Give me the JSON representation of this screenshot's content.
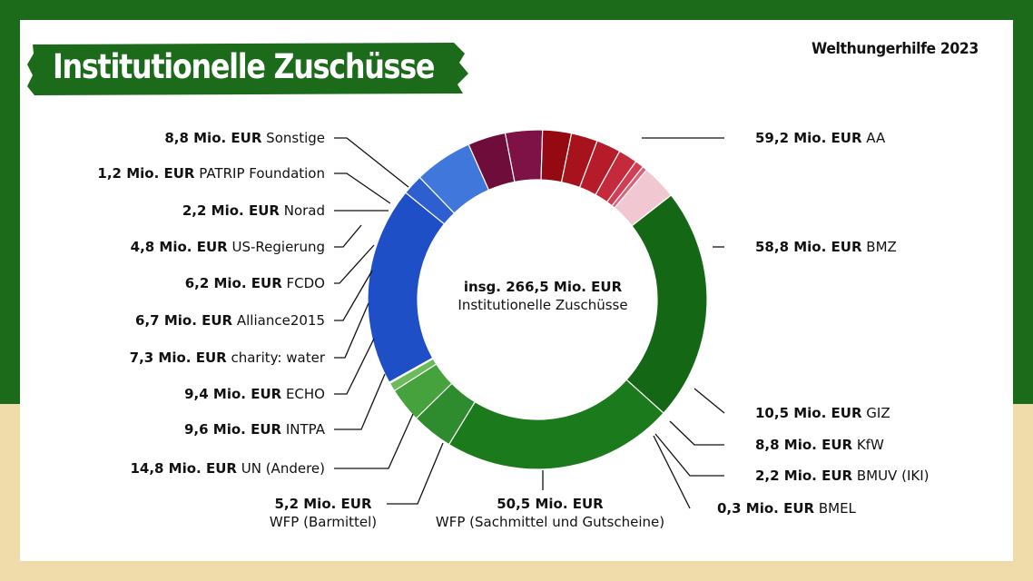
{
  "header": {
    "title": "Institutionelle Zuschüsse",
    "source": "Welthungerhilfe 2023"
  },
  "center": {
    "total": "insg. 266,5 Mio. EUR",
    "subtitle": "Institutionelle Zuschüsse"
  },
  "colors": {
    "frame_green": "#1b6b1b",
    "frame_sand": "#efdcaa",
    "title_banner": "#1b6b1b"
  },
  "chart_data": {
    "type": "pie",
    "donut": true,
    "unit": "Mio. EUR",
    "total": 266.5,
    "slices": [
      {
        "value": 59.2,
        "amount": "59,2 Mio. EUR",
        "name": "AA",
        "color": "#146714"
      },
      {
        "value": 58.8,
        "amount": "58,8 Mio. EUR",
        "name": "BMZ",
        "color": "#1b7a1b"
      },
      {
        "value": 10.5,
        "amount": "10,5 Mio. EUR",
        "name": "GIZ",
        "color": "#2e8b2e"
      },
      {
        "value": 8.8,
        "amount": "8,8 Mio. EUR",
        "name": "KfW",
        "color": "#45a23d"
      },
      {
        "value": 2.2,
        "amount": "2,2 Mio. EUR",
        "name": "BMUV (IKI)",
        "color": "#6cbb5a"
      },
      {
        "value": 0.3,
        "amount": "0,3 Mio. EUR",
        "name": "BMEL",
        "color": "#9ed28a"
      },
      {
        "value": 50.5,
        "amount": "50,5 Mio. EUR",
        "name": "WFP (Sachmittel und Gutscheine)",
        "color": "#1e4fc6"
      },
      {
        "value": 5.2,
        "amount": "5,2 Mio. EUR",
        "name": "WFP (Barmittel)",
        "color": "#2d5fd0"
      },
      {
        "value": 14.8,
        "amount": "14,8 Mio. EUR",
        "name": "UN (Andere)",
        "color": "#3f78da"
      },
      {
        "value": 9.6,
        "amount": "9,6 Mio. EUR",
        "name": "INTPA",
        "color": "#6e0c3a"
      },
      {
        "value": 9.4,
        "amount": "9,4 Mio. EUR",
        "name": "ECHO",
        "color": "#7e1145"
      },
      {
        "value": 7.3,
        "amount": "7,3 Mio. EUR",
        "name": "charity: water",
        "color": "#950a12"
      },
      {
        "value": 6.7,
        "amount": "6,7 Mio. EUR",
        "name": "Alliance2015",
        "color": "#a8121c"
      },
      {
        "value": 6.2,
        "amount": "6,2 Mio. EUR",
        "name": "FCDO",
        "color": "#b51b29"
      },
      {
        "value": 4.8,
        "amount": "4,8 Mio. EUR",
        "name": "US-Regierung",
        "color": "#c42a3c"
      },
      {
        "value": 2.2,
        "amount": "2,2 Mio. EUR",
        "name": "Norad",
        "color": "#d03d55"
      },
      {
        "value": 1.2,
        "amount": "1,2 Mio. EUR",
        "name": "PATRIP Foundation",
        "color": "#dc6278"
      },
      {
        "value": 8.8,
        "amount": "8,8 Mio. EUR",
        "name": "Sonstige",
        "color": "#f1c7d2"
      }
    ]
  }
}
